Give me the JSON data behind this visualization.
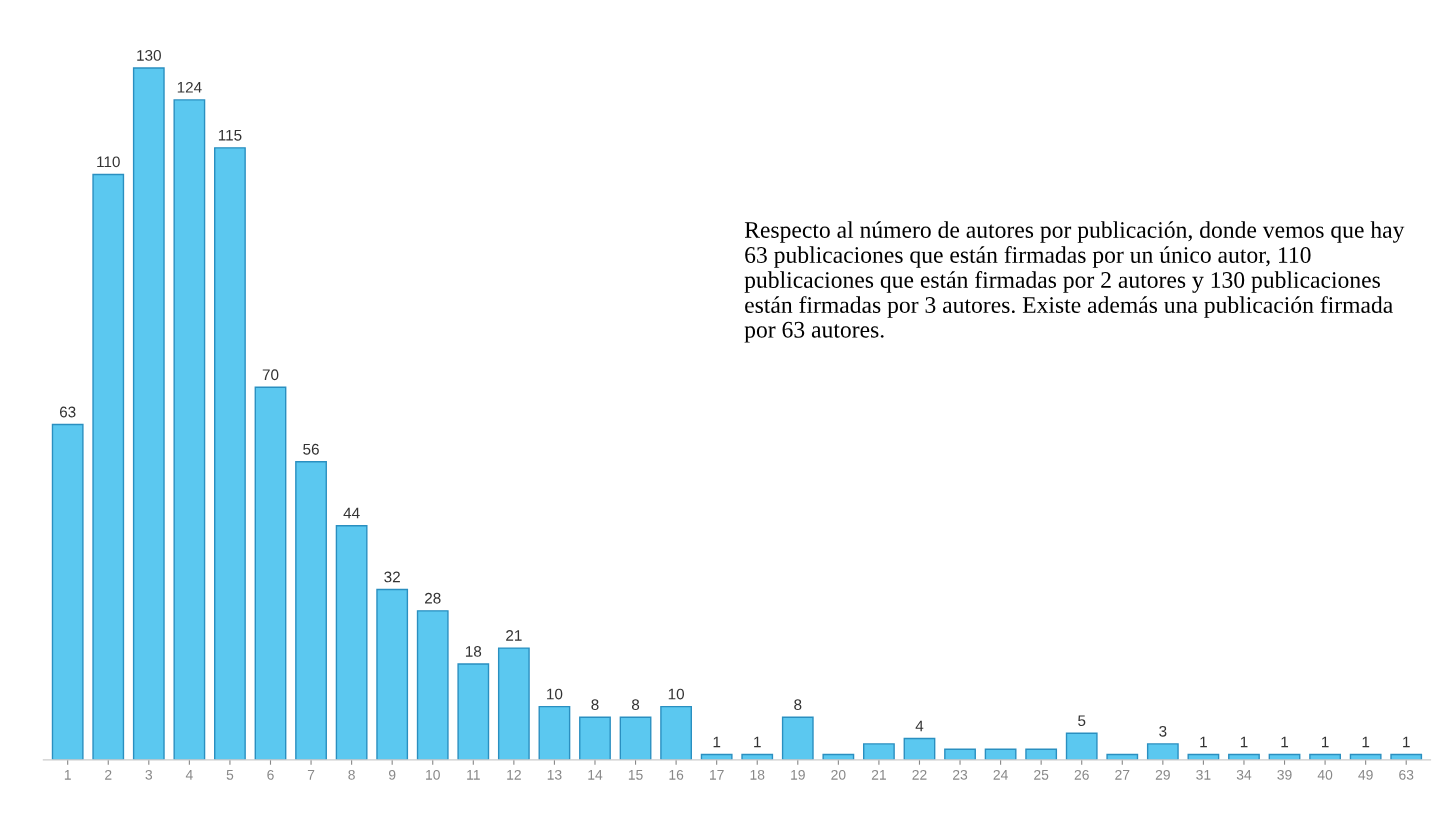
{
  "chart_data": {
    "type": "bar",
    "categories": [
      "1",
      "2",
      "3",
      "4",
      "5",
      "6",
      "7",
      "8",
      "9",
      "10",
      "11",
      "12",
      "13",
      "14",
      "15",
      "16",
      "17",
      "18",
      "19",
      "20",
      "21",
      "22",
      "23",
      "24",
      "25",
      "26",
      "27",
      "29",
      "31",
      "34",
      "39",
      "40",
      "49",
      "63"
    ],
    "values": [
      63,
      110,
      130,
      124,
      115,
      70,
      56,
      44,
      32,
      28,
      18,
      21,
      10,
      8,
      8,
      10,
      1,
      1,
      8,
      1,
      3,
      4,
      2,
      2,
      2,
      5,
      1,
      3,
      1,
      1,
      1,
      1,
      1,
      1
    ],
    "value_labels": [
      "63",
      "110",
      "130",
      "124",
      "115",
      "70",
      "56",
      "44",
      "32",
      "28",
      "18",
      "21",
      "10",
      "8",
      "8",
      "10",
      "1",
      "1",
      "8",
      null,
      null,
      "4",
      null,
      null,
      null,
      "5",
      null,
      "3",
      "1",
      "1",
      "1",
      "1",
      "1",
      "1"
    ],
    "color": "#5bc8f0",
    "tick_labels": "x",
    "grid": false,
    "annotations": [
      "Respecto al número de autores por publicación, donde vemos que hay 63 publicaciones que están firmadas por un único autor, 110 publicaciones que están firmadas por 2 autores y 130 publicaciones están firmadas por 3 autores. Existe además una publicación firmada por 63 autores."
    ]
  }
}
